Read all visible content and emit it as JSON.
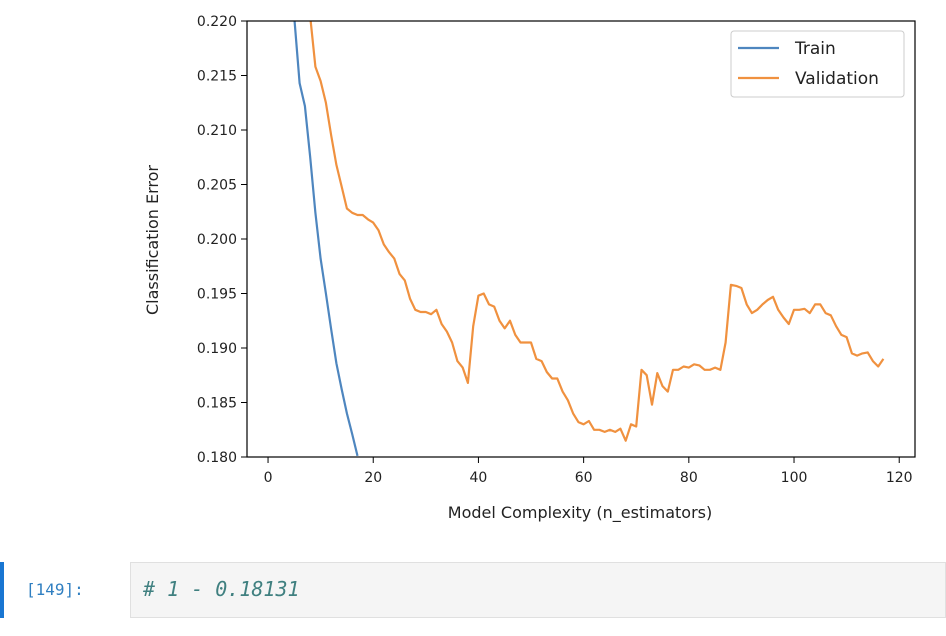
{
  "chart_data": {
    "type": "line",
    "xlabel": "Model Complexity (n_estimators)",
    "ylabel": "Classification Error",
    "xlim": [
      -4,
      123
    ],
    "ylim": [
      0.18,
      0.22
    ],
    "xticks": [
      0,
      20,
      40,
      60,
      80,
      100,
      120
    ],
    "xtick_labels": [
      "0",
      "20",
      "40",
      "60",
      "80",
      "100",
      "120"
    ],
    "yticks": [
      0.18,
      0.185,
      0.19,
      0.195,
      0.2,
      0.205,
      0.21,
      0.215,
      0.22
    ],
    "ytick_labels": [
      "0.180",
      "0.185",
      "0.190",
      "0.195",
      "0.200",
      "0.205",
      "0.210",
      "0.215",
      "0.220"
    ],
    "grid": false,
    "legend_position": "upper right",
    "series": [
      {
        "name": "Train",
        "color": "#4e86bf",
        "x": [
          5,
          6,
          7,
          8,
          9,
          10,
          11,
          12,
          13,
          14,
          15,
          16,
          17
        ],
        "y": [
          0.2203,
          0.2143,
          0.2122,
          0.2076,
          0.2024,
          0.1982,
          0.195,
          0.1917,
          0.1886,
          0.1862,
          0.184,
          0.1821,
          0.1801
        ]
      },
      {
        "name": "Validation",
        "color": "#f0913f",
        "x": [
          8,
          9,
          10,
          11,
          12,
          13,
          14,
          15,
          16,
          17,
          18,
          19,
          20,
          21,
          22,
          23,
          24,
          25,
          26,
          27,
          28,
          29,
          30,
          31,
          32,
          33,
          34,
          35,
          36,
          37,
          38,
          39,
          40,
          41,
          42,
          43,
          44,
          45,
          46,
          47,
          48,
          49,
          50,
          51,
          52,
          53,
          54,
          55,
          56,
          57,
          58,
          59,
          60,
          61,
          62,
          63,
          64,
          65,
          66,
          67,
          68,
          69,
          70,
          71,
          72,
          73,
          74,
          75,
          76,
          77,
          78,
          79,
          80,
          81,
          82,
          83,
          84,
          85,
          86,
          87,
          88,
          89,
          90,
          91,
          92,
          93,
          94,
          95,
          96,
          97,
          98,
          99,
          100,
          101,
          102,
          103,
          104,
          105,
          106,
          107,
          108,
          109,
          110,
          111,
          112,
          113,
          114,
          115,
          116,
          117
        ],
        "y": [
          0.2205,
          0.2158,
          0.2145,
          0.2125,
          0.2095,
          0.2068,
          0.2048,
          0.2028,
          0.2024,
          0.2022,
          0.2022,
          0.2018,
          0.2015,
          0.2008,
          0.1995,
          0.1988,
          0.1982,
          0.1968,
          0.1962,
          0.1945,
          0.1935,
          0.1933,
          0.1933,
          0.1931,
          0.1935,
          0.1922,
          0.1915,
          0.1905,
          0.1888,
          0.1882,
          0.1868,
          0.192,
          0.1948,
          0.195,
          0.194,
          0.1938,
          0.1925,
          0.1918,
          0.1925,
          0.1912,
          0.1905,
          0.1905,
          0.1905,
          0.189,
          0.1888,
          0.1878,
          0.1872,
          0.1872,
          0.186,
          0.1852,
          0.184,
          0.1832,
          0.183,
          0.1833,
          0.1825,
          0.1825,
          0.1823,
          0.1825,
          0.1823,
          0.1826,
          0.1815,
          0.183,
          0.1828,
          0.188,
          0.1875,
          0.1848,
          0.1877,
          0.1865,
          0.186,
          0.188,
          0.188,
          0.1883,
          0.1882,
          0.1885,
          0.1884,
          0.188,
          0.188,
          0.1882,
          0.188,
          0.1905,
          0.1958,
          0.1957,
          0.1955,
          0.194,
          0.1932,
          0.1935,
          0.194,
          0.1944,
          0.1947,
          0.1935,
          0.1928,
          0.1922,
          0.1935,
          0.1935,
          0.1936,
          0.1932,
          0.194,
          0.194,
          0.1932,
          0.193,
          0.192,
          0.1912,
          0.191,
          0.1895,
          0.1893,
          0.1895,
          0.1896,
          0.1888,
          0.1883,
          0.189
        ]
      }
    ]
  },
  "cell": {
    "prompt": "[149]:",
    "code": "# 1 - 0.18131"
  }
}
